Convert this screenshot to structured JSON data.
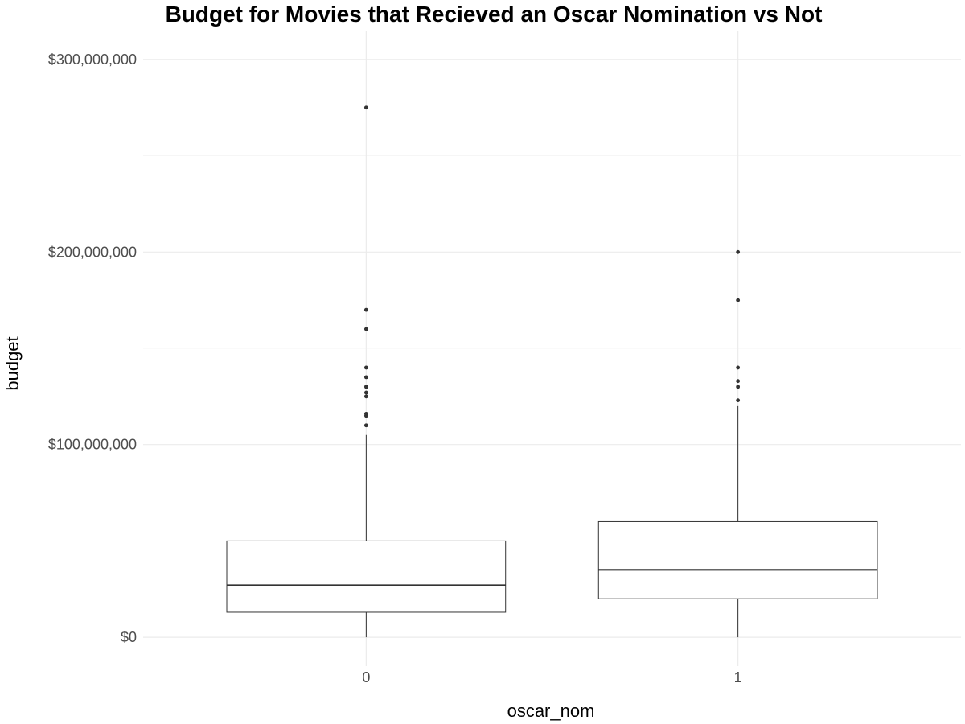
{
  "chart_data": {
    "type": "boxplot",
    "title": "Budget for Movies that Recieved an Oscar Nomination vs Not",
    "xlabel": "oscar_nom",
    "ylabel": "budget",
    "categories": [
      "0",
      "1"
    ],
    "ylim": [
      -15000000,
      315000000
    ],
    "yticks": [
      0,
      100000000,
      200000000,
      300000000
    ],
    "ytick_labels": [
      "$0",
      "$100,000,000",
      "$200,000,000",
      "$300,000,000"
    ],
    "yminor": [
      50000000,
      150000000,
      250000000
    ],
    "grid": true,
    "boxes": [
      {
        "category": "0",
        "whisker_low": 0,
        "q1": 13000000,
        "median": 27000000,
        "q3": 50000000,
        "whisker_high": 105000000,
        "outliers": [
          110000000,
          115000000,
          116000000,
          125000000,
          127000000,
          130000000,
          135000000,
          140000000,
          160000000,
          170000000,
          275000000
        ]
      },
      {
        "category": "1",
        "whisker_low": 0,
        "q1": 20000000,
        "median": 35000000,
        "q3": 60000000,
        "whisker_high": 120000000,
        "outliers": [
          123000000,
          130000000,
          133000000,
          140000000,
          175000000,
          200000000
        ]
      }
    ]
  }
}
